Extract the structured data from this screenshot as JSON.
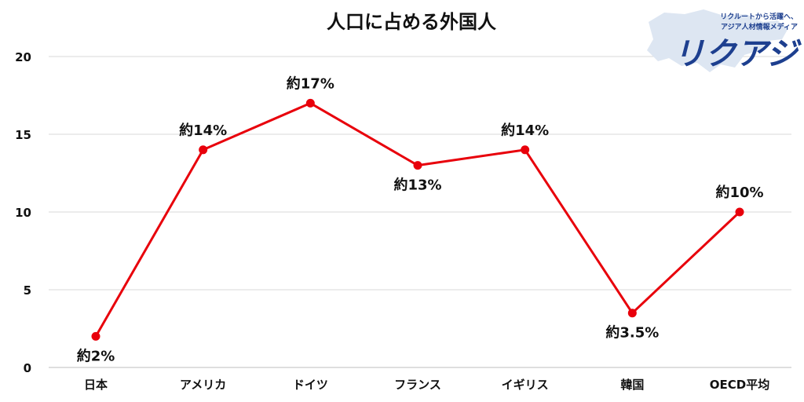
{
  "chart_data": {
    "type": "line",
    "title": "人口に占める外国人",
    "categories": [
      "日本",
      "アメリカ",
      "ドイツ",
      "フランス",
      "イギリス",
      "韓国",
      "OECD平均"
    ],
    "values": [
      2,
      14,
      17,
      13,
      14,
      3.5,
      10
    ],
    "data_labels": [
      "約2%",
      "約14%",
      "約17%",
      "約13%",
      "約14%",
      "約3.5%",
      "約10%"
    ],
    "label_positions": [
      "below",
      "above",
      "above",
      "below",
      "above",
      "below",
      "above"
    ],
    "yticks": [
      "0",
      "5",
      "10",
      "15",
      "20"
    ],
    "ylim": [
      0,
      20
    ],
    "grid": true,
    "line_color": "#e8000b"
  },
  "logo": {
    "tagline_1": "リクルートから活躍へ、",
    "tagline_2": "アジア人材情報メディア",
    "wordmark": "リクアジ",
    "color": "#1d3f8f"
  }
}
